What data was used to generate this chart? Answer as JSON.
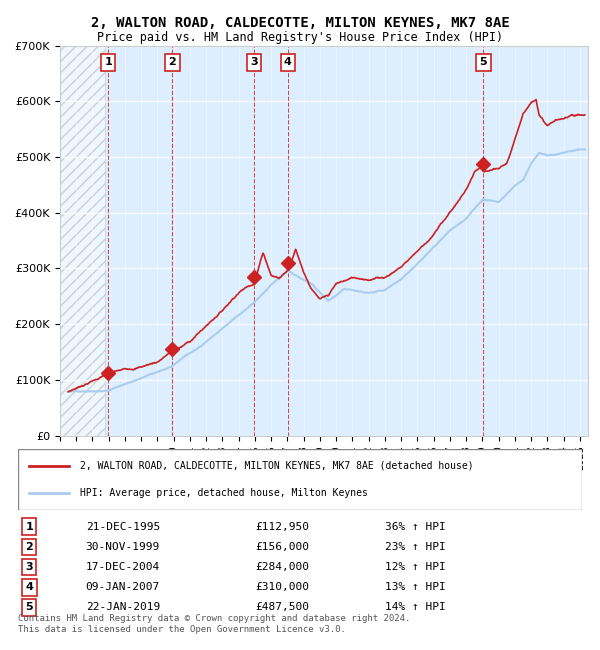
{
  "title": "2, WALTON ROAD, CALDECOTTE, MILTON KEYNES, MK7 8AE",
  "subtitle": "Price paid vs. HM Land Registry's House Price Index (HPI)",
  "xlabel": "",
  "ylabel": "",
  "ylim": [
    0,
    700000
  ],
  "yticks": [
    0,
    100000,
    200000,
    300000,
    400000,
    500000,
    600000,
    700000
  ],
  "ytick_labels": [
    "£0",
    "£100K",
    "£200K",
    "£300K",
    "£400K",
    "£500K",
    "£600K",
    "£700K"
  ],
  "xlim_start": 1993.0,
  "xlim_end": 2025.5,
  "hpi_color": "#aaccee",
  "price_color": "#cc2222",
  "sale_marker_color": "#cc2222",
  "vline_color": "#cc2222",
  "background_color": "#ddeeff",
  "hatch_zone_end": 1995.75,
  "sales": [
    {
      "num": 1,
      "date_dec": 1995.97,
      "price": 112950,
      "label": "1"
    },
    {
      "num": 2,
      "date_dec": 1999.92,
      "price": 156000,
      "label": "2"
    },
    {
      "num": 3,
      "date_dec": 2004.96,
      "price": 284000,
      "label": "3"
    },
    {
      "num": 4,
      "date_dec": 2007.03,
      "price": 310000,
      "label": "4"
    },
    {
      "num": 5,
      "date_dec": 2019.06,
      "price": 487500,
      "label": "5"
    }
  ],
  "legend_line1": "2, WALTON ROAD, CALDECOTTE, MILTON KEYNES, MK7 8AE (detached house)",
  "legend_line2": "HPI: Average price, detached house, Milton Keynes",
  "table_rows": [
    {
      "num": "1",
      "date": "21-DEC-1995",
      "price": "£112,950",
      "hpi": "36% ↑ HPI"
    },
    {
      "num": "2",
      "date": "30-NOV-1999",
      "price": "£156,000",
      "hpi": "23% ↑ HPI"
    },
    {
      "num": "3",
      "date": "17-DEC-2004",
      "price": "£284,000",
      "hpi": "12% ↑ HPI"
    },
    {
      "num": "4",
      "date": "09-JAN-2007",
      "price": "£310,000",
      "hpi": "13% ↑ HPI"
    },
    {
      "num": "5",
      "date": "22-JAN-2019",
      "price": "£487,500",
      "hpi": "14% ↑ HPI"
    }
  ],
  "footer": "Contains HM Land Registry data © Crown copyright and database right 2024.\nThis data is licensed under the Open Government Licence v3.0."
}
